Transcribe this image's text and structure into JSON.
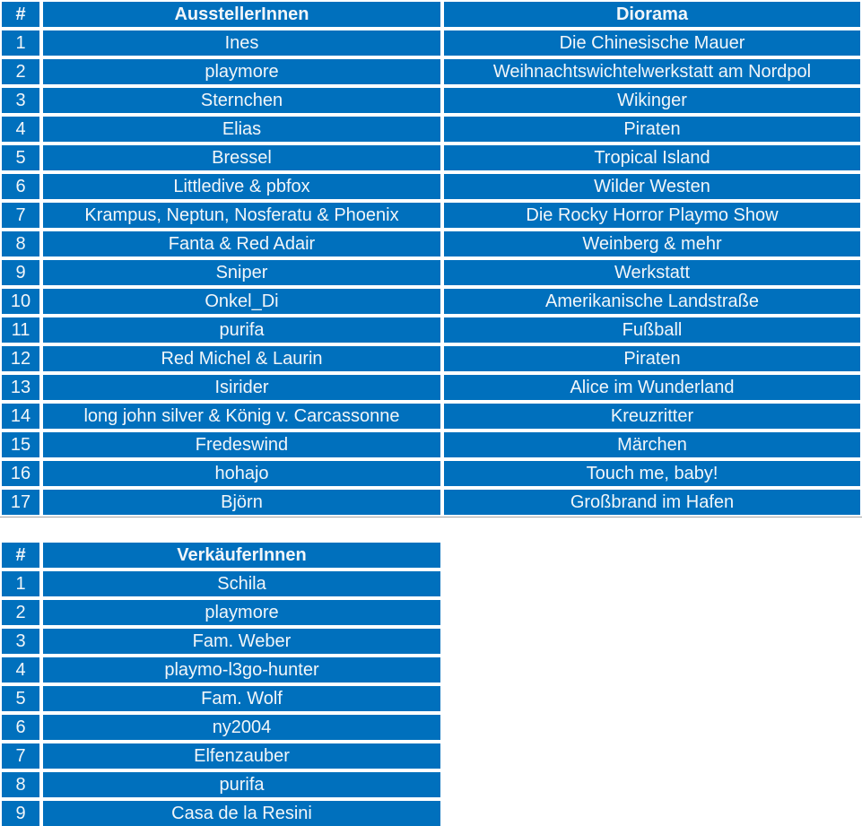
{
  "colors": {
    "cell_background": "#0070BD",
    "cell_text": "#F2F6F9",
    "cell_gap": "#FFFFFF",
    "table_bottom_rule": "#A4A4A4"
  },
  "exhibitor_table": {
    "headers": [
      "#",
      "AusstellerInnen",
      "Diorama"
    ],
    "rows": [
      [
        "1",
        "Ines",
        "Die Chinesische Mauer"
      ],
      [
        "2",
        "playmore",
        "Weihnachtswichtelwerkstatt am Nordpol"
      ],
      [
        "3",
        "Sternchen",
        "Wikinger"
      ],
      [
        "4",
        "Elias",
        "Piraten"
      ],
      [
        "5",
        "Bressel",
        "Tropical Island"
      ],
      [
        "6",
        "Littledive & pbfox",
        "Wilder Westen"
      ],
      [
        "7",
        "Krampus, Neptun, Nosferatu & Phoenix",
        "Die Rocky Horror Playmo Show"
      ],
      [
        "8",
        "Fanta & Red Adair",
        "Weinberg & mehr"
      ],
      [
        "9",
        "Sniper",
        "Werkstatt"
      ],
      [
        "10",
        "Onkel_Di",
        "Amerikanische Landstraße"
      ],
      [
        "11",
        "purifa",
        "Fußball"
      ],
      [
        "12",
        "Red Michel & Laurin",
        "Piraten"
      ],
      [
        "13",
        "Isirider",
        "Alice im Wunderland"
      ],
      [
        "14",
        "long john silver & König v. Carcassonne",
        "Kreuzritter"
      ],
      [
        "15",
        "Fredeswind",
        "Märchen"
      ],
      [
        "16",
        "hohajo",
        "Touch me, baby!"
      ],
      [
        "17",
        "Björn",
        "Großbrand im Hafen"
      ]
    ]
  },
  "seller_table": {
    "headers": [
      "#",
      "VerkäuferInnen"
    ],
    "rows": [
      [
        "1",
        "Schila"
      ],
      [
        "2",
        "playmore"
      ],
      [
        "3",
        "Fam. Weber"
      ],
      [
        "4",
        "playmo-l3go-hunter"
      ],
      [
        "5",
        "Fam. Wolf"
      ],
      [
        "6",
        "ny2004"
      ],
      [
        "7",
        "Elfenzauber"
      ],
      [
        "8",
        "purifa"
      ],
      [
        "9",
        "Casa de la Resini"
      ]
    ]
  }
}
